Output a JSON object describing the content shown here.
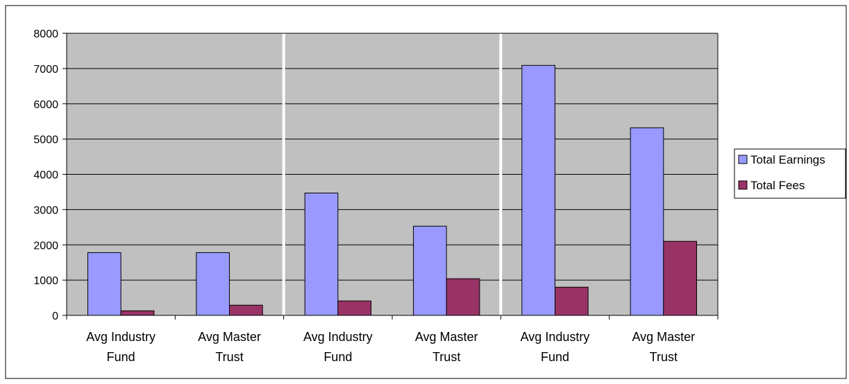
{
  "colors": {
    "plot_background": "#c0c0c0",
    "gridline": "#000000",
    "separator": "#ffffff",
    "earnings": "#9999ff",
    "fees": "#993366",
    "bar_border": "#000000"
  },
  "chart_data": {
    "type": "bar",
    "title": "",
    "xlabel": "",
    "ylabel": "",
    "ylim": [
      0,
      8000
    ],
    "yticks": [
      0,
      1000,
      2000,
      3000,
      4000,
      5000,
      6000,
      7000,
      8000
    ],
    "grid": true,
    "legend_position": "right",
    "categories": [
      [
        "Avg Industry",
        "Fund"
      ],
      [
        "Avg Master",
        "Trust"
      ],
      [
        "Avg Industry",
        "Fund"
      ],
      [
        "Avg Master",
        "Trust"
      ],
      [
        "Avg Industry",
        "Fund"
      ],
      [
        "Avg Master",
        "Trust"
      ]
    ],
    "series": [
      {
        "name": "Total Earnings",
        "color": "#9999ff",
        "values": [
          1780,
          1780,
          3470,
          2530,
          7090,
          5320
        ]
      },
      {
        "name": "Total Fees",
        "color": "#993366",
        "values": [
          130,
          290,
          410,
          1040,
          800,
          2100
        ]
      }
    ],
    "group_separators_after": [
      1,
      3
    ]
  }
}
